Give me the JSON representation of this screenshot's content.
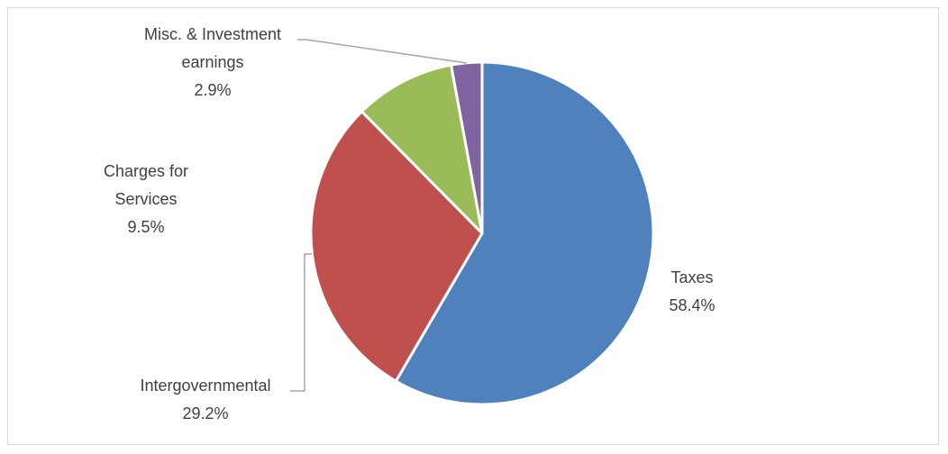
{
  "chart_data": {
    "type": "pie",
    "title": "",
    "slices": [
      {
        "label_lines": [
          "Taxes"
        ],
        "value": 58.4,
        "value_label": "58.4%",
        "color": "#4F81BD"
      },
      {
        "label_lines": [
          "Intergovernmental"
        ],
        "value": 29.2,
        "value_label": "29.2%",
        "color": "#C0504D"
      },
      {
        "label_lines": [
          "Charges for",
          "Services"
        ],
        "value": 9.5,
        "value_label": "9.5%",
        "color": "#9BBB59"
      },
      {
        "label_lines": [
          "Misc. & Investment",
          "earnings"
        ],
        "value": 2.9,
        "value_label": "2.9%",
        "color": "#8064A2"
      }
    ],
    "start_angle": "12 o'clock",
    "direction": "clockwise",
    "legend": "none",
    "labels": "outside with leader lines"
  }
}
